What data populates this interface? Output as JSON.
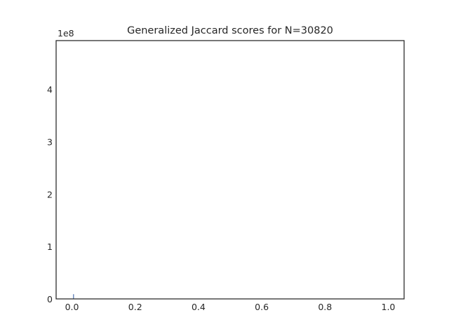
{
  "chart_data": {
    "type": "bar",
    "title": "Generalized Jaccard scores for N=30820",
    "xlabel": "",
    "ylabel": "",
    "y_offset_label": "1e8",
    "xlim": [
      -0.05,
      1.05
    ],
    "ylim": [
      0,
      493000000
    ],
    "x_ticks": [
      {
        "value": 0.0,
        "label": "0.0"
      },
      {
        "value": 0.2,
        "label": "0.2"
      },
      {
        "value": 0.4,
        "label": "0.4"
      },
      {
        "value": 0.6,
        "label": "0.6"
      },
      {
        "value": 0.8,
        "label": "0.8"
      },
      {
        "value": 1.0,
        "label": "1.0"
      }
    ],
    "y_ticks": [
      {
        "value": 0,
        "label": "0"
      },
      {
        "value": 100000000,
        "label": "1"
      },
      {
        "value": 200000000,
        "label": "2"
      },
      {
        "value": 300000000,
        "label": "3"
      },
      {
        "value": 400000000,
        "label": "4"
      }
    ],
    "bar_color": "#4c72b0",
    "bars": [
      {
        "x": 0.005,
        "value": 9000000
      }
    ],
    "grid": false,
    "legend": "none"
  }
}
